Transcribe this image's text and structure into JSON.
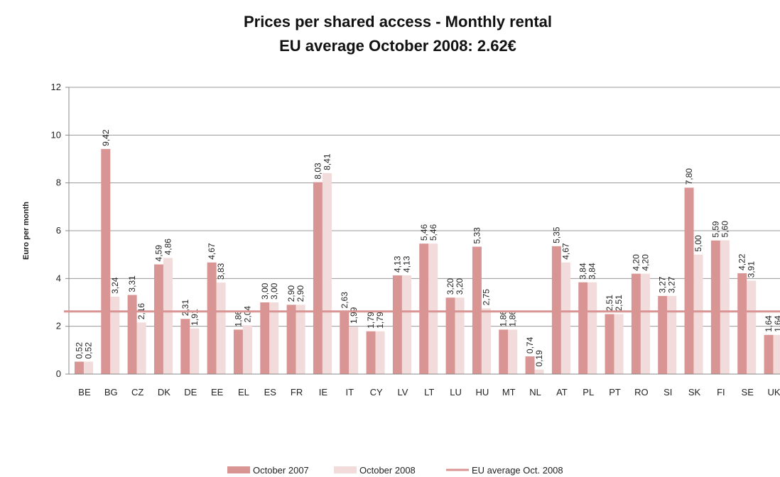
{
  "chart_data": {
    "type": "bar",
    "title": "Prices per shared access - Monthly rental",
    "subtitle": "EU average October 2008:  2.62€",
    "y_label": "Euro per month",
    "categories": [
      "BE",
      "BG",
      "CZ",
      "DK",
      "DE",
      "EE",
      "EL",
      "ES",
      "FR",
      "IE",
      "IT",
      "CY",
      "LV",
      "LT",
      "LU",
      "HU",
      "MT",
      "NL",
      "AT",
      "PL",
      "PT",
      "RO",
      "SI",
      "SK",
      "FI",
      "SE",
      "UK"
    ],
    "series": [
      {
        "name": "October 2007",
        "color": "#d99594",
        "values": [
          0.52,
          9.42,
          3.31,
          4.59,
          2.31,
          4.67,
          1.86,
          3.0,
          2.9,
          8.03,
          2.63,
          1.79,
          4.13,
          5.46,
          3.2,
          5.33,
          1.86,
          0.74,
          5.35,
          3.84,
          2.51,
          4.2,
          3.27,
          7.8,
          5.59,
          4.22,
          1.64
        ],
        "value_labels": [
          "0,52",
          "9,42",
          "3,31",
          "4,59",
          "2,31",
          "4,67",
          "1,86",
          "3,00",
          "2,90",
          "8,03",
          "2,63",
          "1,79",
          "4,13",
          "5,46",
          "3,20",
          "5,33",
          "1,86",
          "0,74",
          "5,35",
          "3,84",
          "2,51",
          "4,20",
          "3,27",
          "7,80",
          "5,59",
          "4,22",
          "1,64"
        ]
      },
      {
        "name": "October 2008",
        "color": "#f2dcdb",
        "values": [
          0.52,
          3.24,
          2.16,
          4.86,
          1.91,
          3.83,
          2.04,
          3.0,
          2.9,
          8.41,
          1.99,
          1.79,
          4.13,
          5.46,
          3.2,
          2.75,
          1.86,
          0.19,
          4.67,
          3.84,
          2.51,
          4.2,
          3.27,
          5.0,
          5.6,
          3.91,
          1.64
        ],
        "value_labels": [
          "0,52",
          "3,24",
          "2,16",
          "4,86",
          "1,91",
          "3,83",
          "2,04",
          "3,00",
          "2,90",
          "8,41",
          "1,99",
          "1,79",
          "4,13",
          "5,46",
          "3,20",
          "2,75",
          "1,86",
          "0,19",
          "4,67",
          "3,84",
          "2,51",
          "4,20",
          "3,27",
          "5,00",
          "5,60",
          "3,91",
          "1,64"
        ]
      }
    ],
    "average": {
      "name": "EU average Oct. 2008",
      "value": 2.62,
      "color": "#d99594"
    },
    "ylim": [
      0,
      12
    ],
    "yticks": [
      0,
      2,
      4,
      6,
      8,
      10,
      12
    ],
    "grid": true
  }
}
